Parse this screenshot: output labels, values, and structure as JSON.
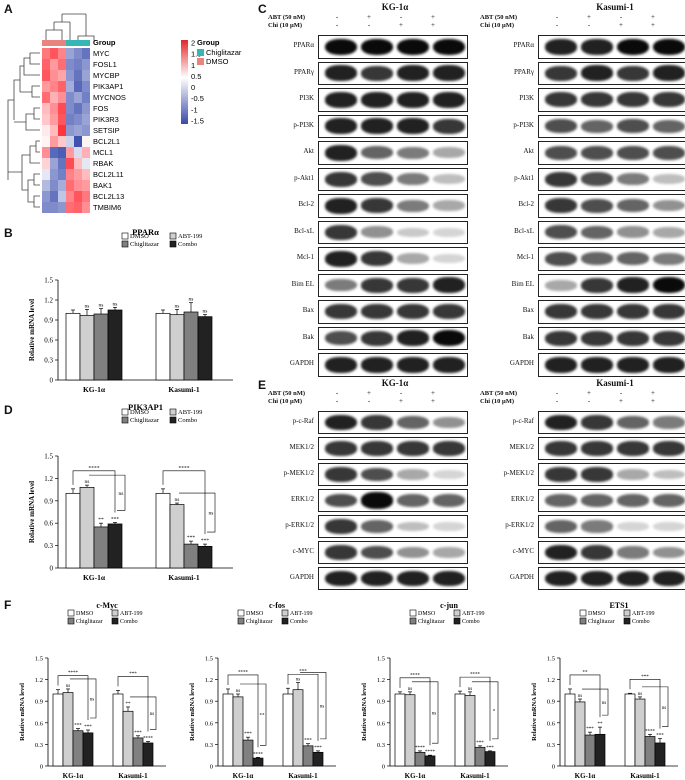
{
  "panels": {
    "A": "A",
    "B": "B",
    "C": "C",
    "D": "D",
    "E": "E",
    "F": "F"
  },
  "heatmap": {
    "group_label": "Group",
    "legend_title": "Group",
    "legend_items": [
      {
        "label": "Chiglitazar",
        "color": "#35b7b7"
      },
      {
        "label": "DMSO",
        "color": "#e8837d"
      }
    ],
    "scale_ticks": [
      "2",
      "1.5",
      "1",
      "0.5",
      "0",
      "-0.5",
      "-1",
      "-1.5"
    ],
    "genes": [
      "MYC",
      "FOSL1",
      "MYCBP",
      "PIK3AP1",
      "MYCNOS",
      "FOS",
      "PIK3R3",
      "SETSIP",
      "BCL2L1",
      "MCL1",
      "RBAK",
      "BCL2L11",
      "BAK1",
      "BCL2L13",
      "TMBIM6"
    ],
    "values": [
      [
        1.2,
        1.5,
        1.1,
        -0.8,
        -1.0,
        -1.2
      ],
      [
        1.4,
        0.9,
        1.3,
        -1.0,
        -1.1,
        -0.9
      ],
      [
        1.5,
        1.0,
        0.8,
        -0.9,
        -1.2,
        -0.8
      ],
      [
        0.9,
        1.1,
        1.4,
        -0.7,
        -1.3,
        -1.0
      ],
      [
        1.3,
        0.7,
        1.0,
        -1.0,
        -0.8,
        -1.1
      ],
      [
        0.6,
        1.0,
        1.6,
        -1.0,
        -1.2,
        -0.9
      ],
      [
        0.5,
        0.9,
        1.5,
        -1.1,
        -1.0,
        -0.8
      ],
      [
        0.2,
        0.6,
        1.8,
        -0.9,
        -0.8,
        -0.9
      ],
      [
        0.1,
        0.9,
        0.5,
        -0.4,
        -1.5,
        0.1
      ],
      [
        1.0,
        -1.3,
        -1.4,
        0.9,
        -0.3,
        0.7
      ],
      [
        0.4,
        -0.8,
        -1.2,
        1.6,
        0.6,
        -0.2
      ],
      [
        -0.2,
        -0.9,
        -1.1,
        1.1,
        0.9,
        0.6
      ],
      [
        -0.6,
        -1.0,
        -0.7,
        1.3,
        1.0,
        0.9
      ],
      [
        -0.9,
        -1.2,
        -0.5,
        1.1,
        1.5,
        1.2
      ],
      [
        -1.0,
        -1.0,
        -0.9,
        1.3,
        1.4,
        1.0
      ]
    ]
  },
  "wb_c": {
    "kg": {
      "title": "KG-1α"
    },
    "kasumi": {
      "title": "Kasumi-1"
    },
    "cond1": "ABT (50 nM)",
    "cond2": "Chi (10 μM)",
    "signs1": [
      "-",
      "+",
      "-",
      "+"
    ],
    "signs2": [
      "-",
      "-",
      "+",
      "+"
    ],
    "labels": [
      "PPARα",
      "PPARγ",
      "PI3K",
      "p-PI3K",
      "Akt",
      "p-Akt1",
      "Bcl-2",
      "Bcl-xL",
      "Mcl-1",
      "Bim EL",
      "Bax",
      "Bak",
      "GAPDH"
    ],
    "kg_intensity": [
      [
        1,
        1,
        1,
        1
      ],
      [
        0.9,
        0.8,
        0.9,
        0.9
      ],
      [
        0.9,
        0.9,
        0.9,
        0.9
      ],
      [
        0.9,
        0.9,
        0.9,
        0.8
      ],
      [
        0.9,
        0.6,
        0.5,
        0.3
      ],
      [
        0.8,
        0.7,
        0.5,
        0.2
      ],
      [
        0.9,
        0.8,
        0.5,
        0.3
      ],
      [
        0.8,
        0.4,
        0.15,
        0.1
      ],
      [
        0.9,
        0.8,
        0.3,
        0.1
      ],
      [
        0.5,
        0.8,
        0.8,
        0.9
      ],
      [
        0.8,
        0.8,
        0.8,
        0.8
      ],
      [
        0.7,
        0.8,
        0.9,
        1
      ],
      [
        0.9,
        0.9,
        0.9,
        0.9
      ]
    ],
    "kas_intensity": [
      [
        0.9,
        0.9,
        1,
        1
      ],
      [
        0.8,
        0.9,
        0.8,
        0.9
      ],
      [
        0.8,
        0.8,
        0.8,
        0.8
      ],
      [
        0.7,
        0.6,
        0.7,
        0.6
      ],
      [
        0.7,
        0.7,
        0.7,
        0.7
      ],
      [
        0.8,
        0.7,
        0.5,
        0.2
      ],
      [
        0.8,
        0.7,
        0.6,
        0.4
      ],
      [
        0.7,
        0.6,
        0.4,
        0.3
      ],
      [
        0.7,
        0.6,
        0.6,
        0.5
      ],
      [
        0.3,
        0.8,
        0.9,
        1
      ],
      [
        0.8,
        0.8,
        0.8,
        0.8
      ],
      [
        0.8,
        0.8,
        0.8,
        0.8
      ],
      [
        0.9,
        0.9,
        0.9,
        0.9
      ]
    ]
  },
  "wb_e": {
    "kg": {
      "title": "KG-1α"
    },
    "kasumi": {
      "title": "Kasumi-1"
    },
    "cond1": "ABT (50 nM)",
    "cond2": "Chi (10 μM)",
    "signs1": [
      "-",
      "+",
      "-",
      "+"
    ],
    "signs2": [
      "-",
      "-",
      "+",
      "+"
    ],
    "labels": [
      "p-c-Raf",
      "MEK1/2",
      "p-MEK1/2",
      "ERK1/2",
      "p-ERK1/2",
      "c-MYC",
      "GAPDH"
    ],
    "kg_intensity": [
      [
        0.9,
        0.8,
        0.6,
        0.4
      ],
      [
        0.8,
        0.8,
        0.8,
        0.8
      ],
      [
        0.8,
        0.7,
        0.3,
        0.1
      ],
      [
        0.7,
        1,
        0.6,
        0.6
      ],
      [
        0.8,
        0.6,
        0.2,
        0.1
      ],
      [
        0.8,
        0.7,
        0.4,
        0.3
      ],
      [
        0.9,
        0.9,
        0.9,
        0.9
      ]
    ],
    "kas_intensity": [
      [
        0.9,
        0.8,
        0.6,
        0.5
      ],
      [
        0.8,
        0.8,
        0.8,
        0.8
      ],
      [
        0.8,
        0.8,
        0.3,
        0.2
      ],
      [
        0.6,
        0.6,
        0.6,
        0.6
      ],
      [
        0.6,
        0.5,
        0.1,
        0.1
      ],
      [
        0.9,
        0.8,
        0.5,
        0.4
      ],
      [
        0.9,
        0.9,
        0.9,
        0.9
      ]
    ]
  },
  "chart_data": [
    {
      "type": "bar",
      "title": "PPARα",
      "ylabel": "Relative mRNA level",
      "categories": [
        "KG-1α",
        "Kasumi-1"
      ],
      "ylim": [
        0,
        1.5
      ],
      "yticks": [
        "0",
        "0.3",
        "0.6",
        "0.9",
        "1.2",
        "1.5"
      ],
      "series": [
        {
          "name": "DMSO",
          "values": [
            1.0,
            1.0
          ]
        },
        {
          "name": "ABT-199",
          "values": [
            0.97,
            0.98
          ]
        },
        {
          "name": "Chiglitazar",
          "values": [
            0.99,
            1.02
          ]
        },
        {
          "name": "Combo",
          "values": [
            1.05,
            0.95
          ]
        }
      ],
      "errors": [
        [
          0.05,
          0.05
        ],
        [
          0.09,
          0.08
        ],
        [
          0.08,
          0.14
        ],
        [
          0.04,
          0.03
        ]
      ],
      "annotations": [
        "ns",
        "ns",
        "ns",
        "ns",
        "ns",
        "ns"
      ]
    },
    {
      "type": "bar",
      "title": "PIK3AP1",
      "ylabel": "Relative mRNA level",
      "categories": [
        "KG-1α",
        "Kasumi-1"
      ],
      "ylim": [
        0,
        1.5
      ],
      "yticks": [
        "0",
        "0.3",
        "0.6",
        "0.9",
        "1.2",
        "1.5"
      ],
      "series": [
        {
          "name": "DMSO",
          "values": [
            1.0,
            1.0
          ]
        },
        {
          "name": "ABT-199",
          "values": [
            1.08,
            0.85
          ]
        },
        {
          "name": "Chiglitazar",
          "values": [
            0.55,
            0.32
          ]
        },
        {
          "name": "Combo",
          "values": [
            0.59,
            0.29
          ]
        }
      ],
      "errors": [
        [
          0.06,
          0.06
        ],
        [
          0.03,
          0.02
        ],
        [
          0.05,
          0.04
        ],
        [
          0.02,
          0.03
        ]
      ],
      "annotations": [
        "ns",
        "**",
        "***",
        "ns",
        "***",
        "***"
      ],
      "sig": [
        "****",
        "ns",
        "****",
        "ns"
      ]
    },
    {
      "type": "bar",
      "title": "c-Myc",
      "ylabel": "Relative mRNA level",
      "categories": [
        "KG-1α",
        "Kasumi-1"
      ],
      "ylim": [
        0,
        1.5
      ],
      "yticks": [
        "0",
        "0.3",
        "0.6",
        "0.9",
        "1.2",
        "1.5"
      ],
      "series": [
        {
          "name": "DMSO",
          "values": [
            1.0,
            1.0
          ]
        },
        {
          "name": "ABT-199",
          "values": [
            1.02,
            0.76
          ]
        },
        {
          "name": "Chiglitazar",
          "values": [
            0.49,
            0.39
          ]
        },
        {
          "name": "Combo",
          "values": [
            0.46,
            0.32
          ]
        }
      ],
      "errors": [
        [
          0.06,
          0.05
        ],
        [
          0.05,
          0.06
        ],
        [
          0.03,
          0.03
        ],
        [
          0.04,
          0.02
        ]
      ],
      "annotations": [
        "ns",
        "***",
        "***",
        "**",
        "***",
        "****"
      ],
      "sig": [
        "****",
        "ns",
        "***",
        "ns"
      ]
    },
    {
      "type": "bar",
      "title": "c-fos",
      "ylabel": "Relative mRNA level",
      "categories": [
        "KG-1α",
        "Kasumi-1"
      ],
      "ylim": [
        0,
        1.5
      ],
      "yticks": [
        "0",
        "0.3",
        "0.6",
        "0.9",
        "1.2",
        "1.5"
      ],
      "series": [
        {
          "name": "DMSO",
          "values": [
            1.0,
            1.0
          ]
        },
        {
          "name": "ABT-199",
          "values": [
            0.96,
            1.06
          ]
        },
        {
          "name": "Chiglitazar",
          "values": [
            0.36,
            0.28
          ]
        },
        {
          "name": "Combo",
          "values": [
            0.11,
            0.19
          ]
        }
      ],
      "errors": [
        [
          0.07,
          0.08
        ],
        [
          0.04,
          0.1
        ],
        [
          0.04,
          0.03
        ],
        [
          0.01,
          0.02
        ]
      ],
      "annotations": [
        "ns",
        "***",
        "****",
        "ns",
        "***",
        "***"
      ],
      "sig": [
        "****",
        "**",
        "***",
        "ns"
      ]
    },
    {
      "type": "bar",
      "title": "c-jun",
      "ylabel": "Relative mRNA level",
      "categories": [
        "KG-1α",
        "Kasumi-1"
      ],
      "ylim": [
        0,
        1.5
      ],
      "yticks": [
        "0",
        "0.3",
        "0.6",
        "0.9",
        "1.2",
        "1.5"
      ],
      "series": [
        {
          "name": "DMSO",
          "values": [
            1.0,
            1.0
          ]
        },
        {
          "name": "ABT-199",
          "values": [
            0.99,
            0.98
          ]
        },
        {
          "name": "Chiglitazar",
          "values": [
            0.19,
            0.26
          ]
        },
        {
          "name": "Combo",
          "values": [
            0.14,
            0.2
          ]
        }
      ],
      "errors": [
        [
          0.03,
          0.04
        ],
        [
          0.04,
          0.05
        ],
        [
          0.02,
          0.02
        ],
        [
          0.01,
          0.01
        ]
      ],
      "annotations": [
        "ns",
        "****",
        "****",
        "ns",
        "***",
        "***"
      ],
      "sig": [
        "****",
        "ns",
        "****",
        "*"
      ]
    },
    {
      "type": "bar",
      "title": "ETS1",
      "ylabel": "Relative mRNA level",
      "categories": [
        "KG-1α",
        "Kasumi-1"
      ],
      "ylim": [
        0,
        1.5
      ],
      "yticks": [
        "0",
        "0.3",
        "0.6",
        "0.9",
        "1.2",
        "1.5"
      ],
      "series": [
        {
          "name": "DMSO",
          "values": [
            1.0,
            1.0
          ]
        },
        {
          "name": "ABT-199",
          "values": [
            0.89,
            0.93
          ]
        },
        {
          "name": "Chiglitazar",
          "values": [
            0.43,
            0.41
          ]
        },
        {
          "name": "Combo",
          "values": [
            0.44,
            0.32
          ]
        }
      ],
      "errors": [
        [
          0.07,
          0.01
        ],
        [
          0.04,
          0.03
        ],
        [
          0.04,
          0.03
        ],
        [
          0.1,
          0.06
        ]
      ],
      "annotations": [
        "ns",
        "***",
        "**",
        "ns",
        "****",
        "***"
      ],
      "sig": [
        "**",
        "ns",
        "***",
        "ns"
      ]
    }
  ],
  "colors": {
    "DMSO": "#ffffff",
    "ABT-199": "#cfcfcf",
    "Chiglitazar": "#808080",
    "Combo": "#222222"
  }
}
